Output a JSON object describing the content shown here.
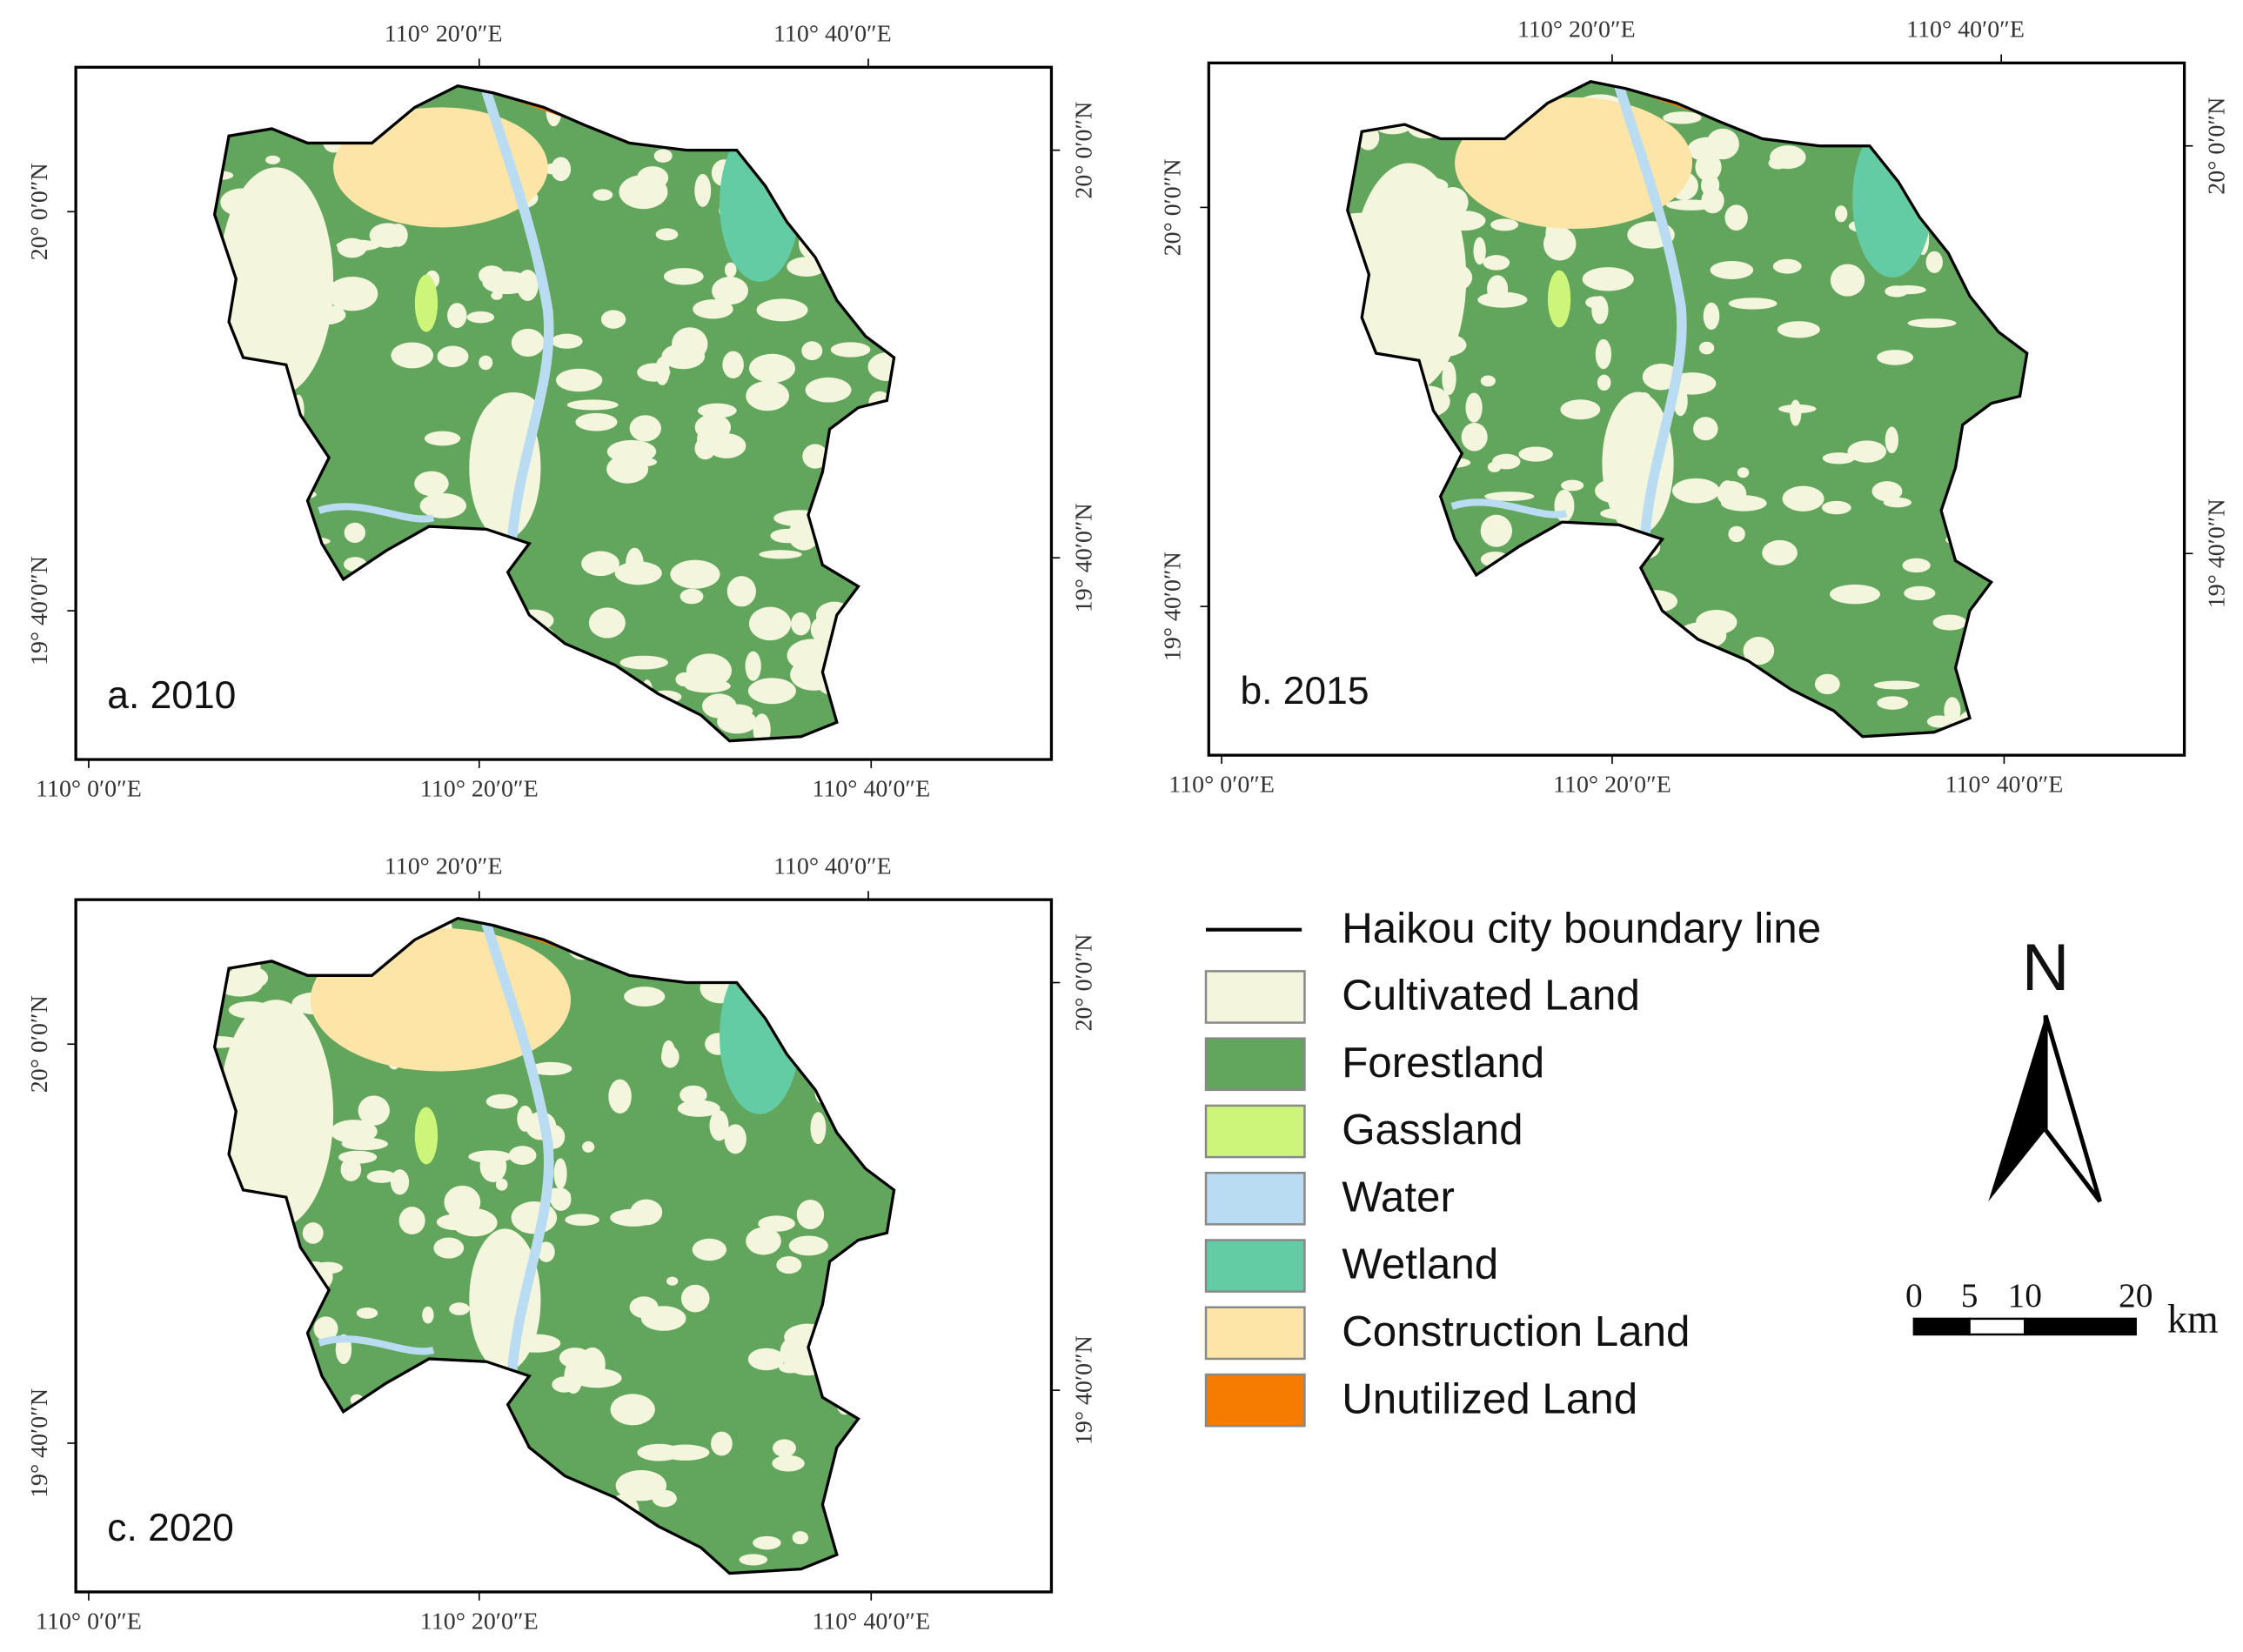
{
  "panels": [
    {
      "label": "a. 2010",
      "top_ticks": [
        "110° 20′0″E",
        "110° 40′0″E"
      ],
      "bottom_ticks": [
        "110° 0′0″E",
        "110° 20′0″E",
        "110° 40′0″E"
      ],
      "left_ticks": [
        "20° 0′0″N",
        "19° 40′0″N"
      ],
      "right_ticks": [
        "20° 0′0″N",
        "19° 40′0″N"
      ]
    },
    {
      "label": "b. 2015",
      "top_ticks": [
        "110° 20′0″E",
        "110° 40′0″E"
      ],
      "bottom_ticks": [
        "110° 0′0″E",
        "110° 20′0″E",
        "110° 40′0″E"
      ],
      "left_ticks": [
        "20° 0′0″N",
        "19° 40′0″N"
      ],
      "right_ticks": [
        "20° 0′0″N",
        "19° 40′0″N"
      ]
    },
    {
      "label": "c. 2020",
      "top_ticks": [
        "110° 20′0″E",
        "110° 40′0″E"
      ],
      "bottom_ticks": [
        "110° 0′0″E",
        "110° 20′0″E",
        "110° 40′0″E"
      ],
      "left_ticks": [
        "20° 0′0″N",
        "19° 40′0″N"
      ],
      "right_ticks": [
        "20° 0′0″N",
        "19° 40′0″N"
      ]
    }
  ],
  "legend": {
    "boundary": "Haikou city boundary line",
    "items": [
      {
        "label": "Cultivated Land",
        "color": "#f3f6dc"
      },
      {
        "label": "Forestland",
        "color": "#62a55c"
      },
      {
        "label": "Gassland",
        "color": "#cdf57a"
      },
      {
        "label": "Water",
        "color": "#b9dcf2"
      },
      {
        "label": "Wetland",
        "color": "#63cca5"
      },
      {
        "label": "Construction Land",
        "color": "#fde5a8"
      },
      {
        "label": "Unutilized Land",
        "color": "#f57c00"
      }
    ]
  },
  "north": "N",
  "scale_bar": {
    "ticks": [
      0,
      5,
      10,
      20
    ],
    "unit": "km"
  }
}
